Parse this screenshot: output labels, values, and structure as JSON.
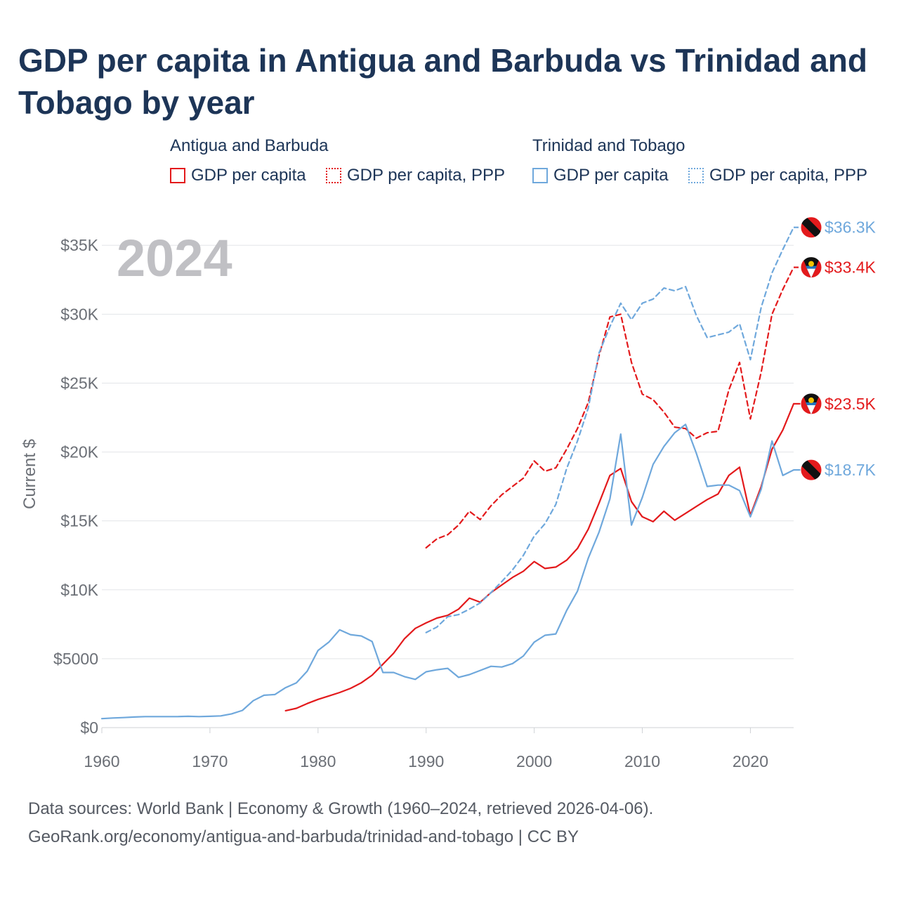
{
  "title": "GDP per capita in Antigua and Barbuda vs Trinidad and Tobago by year",
  "legend": {
    "groups": [
      {
        "name": "Antigua and Barbuda",
        "items": [
          "GDP per capita",
          "GDP per capita, PPP"
        ]
      },
      {
        "name": "Trinidad and Tobago",
        "items": [
          "GDP per capita",
          "GDP per capita, PPP"
        ]
      }
    ]
  },
  "footer": {
    "line1": "Data sources: World Bank | Economy & Growth (1960–2024, retrieved 2026-04-06).",
    "line2": "GeoRank.org/economy/antigua-and-barbuda/trinidad-and-tobago | CC BY"
  },
  "chart_data": {
    "type": "line",
    "title": "GDP per capita in Antigua and Barbuda vs Trinidad and Tobago by year",
    "year_label": "2024",
    "xlabel": "",
    "ylabel": "Current $",
    "xlim": [
      1960,
      2024
    ],
    "ylim": [
      0,
      37000
    ],
    "x_ticks": [
      1960,
      1970,
      1980,
      1990,
      2000,
      2010,
      2020
    ],
    "x_tick_labels": [
      "1960",
      "1970",
      "1980",
      "1990",
      "2000",
      "2010",
      "2020"
    ],
    "y_ticks": [
      0,
      5000,
      10000,
      15000,
      20000,
      25000,
      30000,
      35000
    ],
    "y_tick_labels": [
      "$0",
      "$5000",
      "$10K",
      "$15K",
      "$20K",
      "$25K",
      "$30K",
      "$35K"
    ],
    "grid": true,
    "colors": {
      "antigua": "#e31a1c",
      "trinidad": "#6fa8dc"
    },
    "series": [
      {
        "name": "Antigua and Barbuda GDP per capita",
        "country": "Antigua and Barbuda",
        "color": "#e31a1c",
        "dash": "solid",
        "end_label": "$23.5K",
        "flag": "antigua",
        "points": [
          [
            1977,
            1230
          ],
          [
            1978,
            1400
          ],
          [
            1979,
            1750
          ],
          [
            1980,
            2050
          ],
          [
            1981,
            2300
          ],
          [
            1982,
            2550
          ],
          [
            1983,
            2850
          ],
          [
            1984,
            3250
          ],
          [
            1985,
            3800
          ],
          [
            1986,
            4600
          ],
          [
            1987,
            5400
          ],
          [
            1988,
            6450
          ],
          [
            1989,
            7200
          ],
          [
            1990,
            7600
          ],
          [
            1991,
            7950
          ],
          [
            1992,
            8150
          ],
          [
            1993,
            8600
          ],
          [
            1994,
            9400
          ],
          [
            1995,
            9100
          ],
          [
            1996,
            9800
          ],
          [
            1997,
            10350
          ],
          [
            1998,
            10900
          ],
          [
            1999,
            11350
          ],
          [
            2000,
            12050
          ],
          [
            2001,
            11550
          ],
          [
            2002,
            11650
          ],
          [
            2003,
            12150
          ],
          [
            2004,
            13000
          ],
          [
            2005,
            14400
          ],
          [
            2006,
            16300
          ],
          [
            2007,
            18300
          ],
          [
            2008,
            18800
          ],
          [
            2009,
            16400
          ],
          [
            2010,
            15300
          ],
          [
            2011,
            14950
          ],
          [
            2012,
            15700
          ],
          [
            2013,
            15050
          ],
          [
            2014,
            15550
          ],
          [
            2015,
            16050
          ],
          [
            2016,
            16550
          ],
          [
            2017,
            16950
          ],
          [
            2018,
            18300
          ],
          [
            2019,
            18900
          ],
          [
            2020,
            15400
          ],
          [
            2021,
            17500
          ],
          [
            2022,
            20200
          ],
          [
            2023,
            21600
          ],
          [
            2024,
            23500
          ]
        ]
      },
      {
        "name": "Antigua and Barbuda GDP per capita, PPP",
        "country": "Antigua and Barbuda",
        "color": "#e31a1c",
        "dash": "dashed",
        "end_label": "$33.4K",
        "flag": "antigua",
        "points": [
          [
            1990,
            13050
          ],
          [
            1991,
            13700
          ],
          [
            1992,
            14000
          ],
          [
            1993,
            14700
          ],
          [
            1994,
            15700
          ],
          [
            1995,
            15100
          ],
          [
            1996,
            16100
          ],
          [
            1997,
            16900
          ],
          [
            1998,
            17500
          ],
          [
            1999,
            18100
          ],
          [
            2000,
            19350
          ],
          [
            2001,
            18600
          ],
          [
            2002,
            18850
          ],
          [
            2003,
            20200
          ],
          [
            2004,
            21700
          ],
          [
            2005,
            23600
          ],
          [
            2006,
            27000
          ],
          [
            2007,
            29800
          ],
          [
            2008,
            30000
          ],
          [
            2009,
            26500
          ],
          [
            2010,
            24200
          ],
          [
            2011,
            23800
          ],
          [
            2012,
            22900
          ],
          [
            2013,
            21800
          ],
          [
            2014,
            21700
          ],
          [
            2015,
            21000
          ],
          [
            2016,
            21400
          ],
          [
            2017,
            21500
          ],
          [
            2018,
            24500
          ],
          [
            2019,
            26500
          ],
          [
            2020,
            22400
          ],
          [
            2021,
            25800
          ],
          [
            2022,
            30000
          ],
          [
            2023,
            31800
          ],
          [
            2024,
            33400
          ]
        ]
      },
      {
        "name": "Trinidad and Tobago GDP per capita",
        "country": "Trinidad and Tobago",
        "color": "#6fa8dc",
        "dash": "solid",
        "end_label": "$18.7K",
        "flag": "trinidad",
        "points": [
          [
            1960,
            650
          ],
          [
            1961,
            700
          ],
          [
            1962,
            730
          ],
          [
            1963,
            770
          ],
          [
            1964,
            800
          ],
          [
            1965,
            800
          ],
          [
            1966,
            800
          ],
          [
            1967,
            800
          ],
          [
            1968,
            820
          ],
          [
            1969,
            800
          ],
          [
            1970,
            820
          ],
          [
            1971,
            850
          ],
          [
            1972,
            1000
          ],
          [
            1973,
            1250
          ],
          [
            1974,
            1950
          ],
          [
            1975,
            2350
          ],
          [
            1976,
            2400
          ],
          [
            1977,
            2900
          ],
          [
            1978,
            3250
          ],
          [
            1979,
            4100
          ],
          [
            1980,
            5600
          ],
          [
            1981,
            6200
          ],
          [
            1982,
            7100
          ],
          [
            1983,
            6750
          ],
          [
            1984,
            6650
          ],
          [
            1985,
            6250
          ],
          [
            1986,
            4000
          ],
          [
            1987,
            4000
          ],
          [
            1988,
            3700
          ],
          [
            1989,
            3500
          ],
          [
            1990,
            4050
          ],
          [
            1991,
            4200
          ],
          [
            1992,
            4300
          ],
          [
            1993,
            3650
          ],
          [
            1994,
            3850
          ],
          [
            1995,
            4150
          ],
          [
            1996,
            4450
          ],
          [
            1997,
            4400
          ],
          [
            1998,
            4650
          ],
          [
            1999,
            5200
          ],
          [
            2000,
            6200
          ],
          [
            2001,
            6700
          ],
          [
            2002,
            6800
          ],
          [
            2003,
            8500
          ],
          [
            2004,
            9900
          ],
          [
            2005,
            12300
          ],
          [
            2006,
            14200
          ],
          [
            2007,
            16600
          ],
          [
            2008,
            21300
          ],
          [
            2009,
            14700
          ],
          [
            2010,
            16700
          ],
          [
            2011,
            19100
          ],
          [
            2012,
            20400
          ],
          [
            2013,
            21400
          ],
          [
            2014,
            22000
          ],
          [
            2015,
            19900
          ],
          [
            2016,
            17500
          ],
          [
            2017,
            17600
          ],
          [
            2018,
            17600
          ],
          [
            2019,
            17200
          ],
          [
            2020,
            15300
          ],
          [
            2021,
            17300
          ],
          [
            2022,
            20800
          ],
          [
            2023,
            18300
          ],
          [
            2024,
            18700
          ]
        ]
      },
      {
        "name": "Trinidad and Tobago GDP per capita, PPP",
        "country": "Trinidad and Tobago",
        "color": "#6fa8dc",
        "dash": "dashed",
        "end_label": "$36.3K",
        "flag": "trinidad",
        "points": [
          [
            1990,
            6900
          ],
          [
            1991,
            7300
          ],
          [
            1992,
            8050
          ],
          [
            1993,
            8200
          ],
          [
            1994,
            8600
          ],
          [
            1995,
            9050
          ],
          [
            1996,
            9800
          ],
          [
            1997,
            10600
          ],
          [
            1998,
            11450
          ],
          [
            1999,
            12500
          ],
          [
            2000,
            13900
          ],
          [
            2001,
            14800
          ],
          [
            2002,
            16200
          ],
          [
            2003,
            18800
          ],
          [
            2004,
            20800
          ],
          [
            2005,
            23200
          ],
          [
            2006,
            27200
          ],
          [
            2007,
            29100
          ],
          [
            2008,
            30800
          ],
          [
            2009,
            29600
          ],
          [
            2010,
            30800
          ],
          [
            2011,
            31100
          ],
          [
            2012,
            31900
          ],
          [
            2013,
            31700
          ],
          [
            2014,
            32000
          ],
          [
            2015,
            29900
          ],
          [
            2016,
            28300
          ],
          [
            2017,
            28500
          ],
          [
            2018,
            28700
          ],
          [
            2019,
            29300
          ],
          [
            2020,
            26700
          ],
          [
            2021,
            30500
          ],
          [
            2022,
            33000
          ],
          [
            2023,
            34700
          ],
          [
            2024,
            36300
          ]
        ]
      }
    ]
  }
}
